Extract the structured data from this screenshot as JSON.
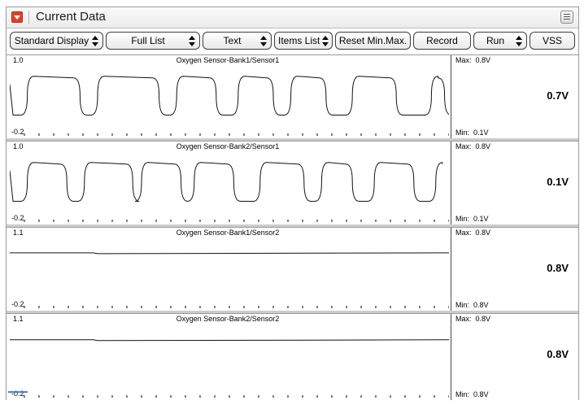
{
  "window": {
    "title": "Current Data",
    "icons": {
      "collapse": "collapse-arrow-icon",
      "menu": "menu-icon"
    }
  },
  "toolbar": [
    {
      "id": "display-mode",
      "label": "Standard Display",
      "has_spinner": true
    },
    {
      "id": "list-mode",
      "label": "Full List",
      "has_spinner": true
    },
    {
      "id": "view-mode",
      "label": "Text",
      "has_spinner": true
    },
    {
      "id": "items-list",
      "label": "Items List",
      "has_spinner": true
    },
    {
      "id": "reset-minmax",
      "label": "Reset Min.Max.",
      "has_spinner": false
    },
    {
      "id": "record",
      "label": "Record",
      "has_spinner": false
    },
    {
      "id": "run",
      "label": "Run",
      "has_spinner": true
    },
    {
      "id": "vss",
      "label": "VSS",
      "has_spinner": false
    }
  ],
  "panels": [
    {
      "title": "Oxygen Sensor-Bank1/Sensor1",
      "y_max_label": "1.0",
      "y_min_label": "-0.2",
      "max_label": "Max:",
      "max_value": "0.8V",
      "min_label": "Min:",
      "min_value": "0.1V",
      "current_value": "0.7V"
    },
    {
      "title": "Oxygen Sensor-Bank2/Sensor1",
      "y_max_label": "1.0",
      "y_min_label": "-0.2",
      "max_label": "Max:",
      "max_value": "0.8V",
      "min_label": "Min:",
      "min_value": "0.1V",
      "current_value": "0.1V"
    },
    {
      "title": "Oxygen Sensor-Bank1/Sensor2",
      "y_max_label": "1.1",
      "y_min_label": "-0.2",
      "max_label": "Max:",
      "max_value": "0.8V",
      "min_label": "Min:",
      "min_value": "0.8V",
      "current_value": "0.8V"
    },
    {
      "title": "Oxygen Sensor-Bank2/Sensor2",
      "y_max_label": "1.1",
      "y_min_label": "-0.2",
      "max_label": "Max:",
      "max_value": "0.8V",
      "min_label": "Min:",
      "min_value": "0.8V",
      "current_value": "0.8V"
    }
  ],
  "chart_data": [
    {
      "type": "line",
      "ylim": [
        -0.2,
        1.0
      ],
      "series": [
        {
          "pattern": "square-wave",
          "high": 0.8,
          "low": 0.1,
          "highs": [
            [
              0.04,
              0.16
            ],
            [
              0.2,
              0.34
            ],
            [
              0.38,
              0.47
            ],
            [
              0.52,
              0.6
            ],
            [
              0.64,
              0.72
            ],
            [
              0.78,
              0.88
            ],
            [
              0.96,
              0.99
            ]
          ]
        }
      ]
    },
    {
      "type": "line",
      "ylim": [
        -0.2,
        1.0
      ],
      "series": [
        {
          "pattern": "square-wave",
          "high": 0.8,
          "low": 0.1,
          "highs": [
            [
              0.04,
              0.13
            ],
            [
              0.17,
              0.28
            ],
            [
              0.3,
              0.39
            ],
            [
              0.42,
              0.51
            ],
            [
              0.57,
              0.67
            ],
            [
              0.71,
              0.78
            ],
            [
              0.83,
              0.92
            ],
            [
              0.97,
              1.0
            ]
          ]
        }
      ]
    },
    {
      "type": "line",
      "ylim": [
        -0.2,
        1.1
      ],
      "series": [
        {
          "pattern": "flat",
          "value": 0.8
        }
      ]
    },
    {
      "type": "line",
      "ylim": [
        -0.2,
        1.1
      ],
      "series": [
        {
          "pattern": "flat",
          "value": 0.8
        }
      ]
    }
  ]
}
